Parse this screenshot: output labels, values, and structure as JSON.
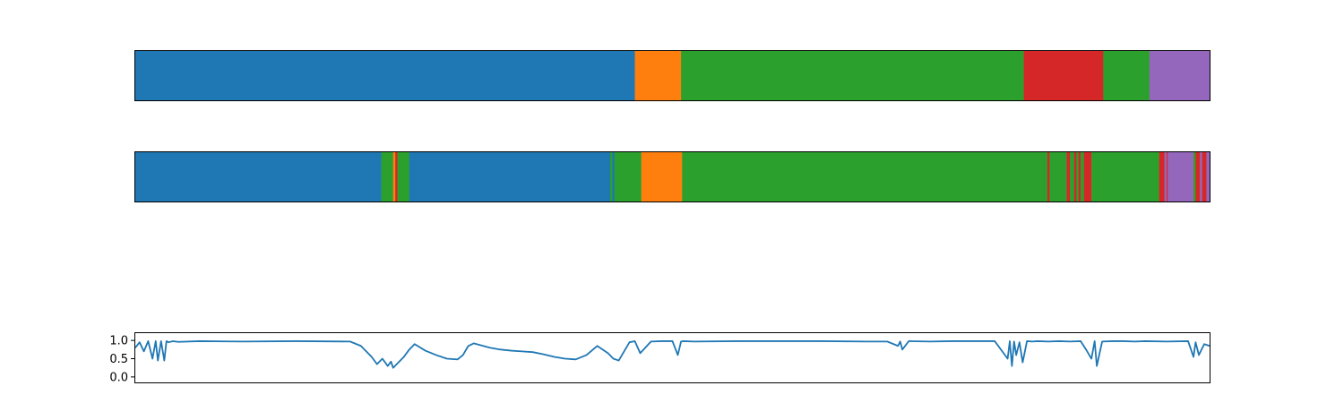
{
  "colors": {
    "blue": "#1f77b4",
    "orange": "#ff7f0e",
    "green": "#2ca02c",
    "red": "#d62728",
    "purple": "#9467bd",
    "line": "#1f77b4",
    "axes": "#000000",
    "background": "#ffffff"
  },
  "chart_data": [
    {
      "type": "heatmap",
      "x_range": [
        0,
        1000
      ],
      "axes_visible": false,
      "segments": [
        {
          "start": 0,
          "end": 465,
          "color": "blue"
        },
        {
          "start": 465,
          "end": 508,
          "color": "orange"
        },
        {
          "start": 508,
          "end": 827,
          "color": "green"
        },
        {
          "start": 827,
          "end": 901,
          "color": "red"
        },
        {
          "start": 901,
          "end": 944,
          "color": "green"
        },
        {
          "start": 944,
          "end": 1000,
          "color": "purple"
        }
      ]
    },
    {
      "type": "heatmap",
      "x_range": [
        0,
        1000
      ],
      "axes_visible": false,
      "segments": [
        {
          "start": 0,
          "end": 229,
          "color": "blue"
        },
        {
          "start": 229,
          "end": 240,
          "color": "green"
        },
        {
          "start": 240,
          "end": 242,
          "color": "orange"
        },
        {
          "start": 242,
          "end": 244,
          "color": "red"
        },
        {
          "start": 244,
          "end": 255,
          "color": "green"
        },
        {
          "start": 255,
          "end": 442,
          "color": "blue"
        },
        {
          "start": 442,
          "end": 444,
          "color": "green"
        },
        {
          "start": 444,
          "end": 446,
          "color": "blue"
        },
        {
          "start": 446,
          "end": 471,
          "color": "green"
        },
        {
          "start": 471,
          "end": 509,
          "color": "orange"
        },
        {
          "start": 509,
          "end": 849,
          "color": "green"
        },
        {
          "start": 849,
          "end": 851,
          "color": "red"
        },
        {
          "start": 851,
          "end": 867,
          "color": "green"
        },
        {
          "start": 867,
          "end": 870,
          "color": "red"
        },
        {
          "start": 870,
          "end": 874,
          "color": "green"
        },
        {
          "start": 874,
          "end": 876,
          "color": "red"
        },
        {
          "start": 876,
          "end": 878,
          "color": "green"
        },
        {
          "start": 878,
          "end": 880,
          "color": "red"
        },
        {
          "start": 880,
          "end": 883,
          "color": "green"
        },
        {
          "start": 883,
          "end": 890,
          "color": "red"
        },
        {
          "start": 890,
          "end": 953,
          "color": "green"
        },
        {
          "start": 953,
          "end": 958,
          "color": "red"
        },
        {
          "start": 958,
          "end": 960,
          "color": "purple"
        },
        {
          "start": 960,
          "end": 961,
          "color": "red"
        },
        {
          "start": 961,
          "end": 985,
          "color": "purple"
        },
        {
          "start": 985,
          "end": 987,
          "color": "green"
        },
        {
          "start": 987,
          "end": 991,
          "color": "red"
        },
        {
          "start": 991,
          "end": 993,
          "color": "purple"
        },
        {
          "start": 993,
          "end": 997,
          "color": "red"
        },
        {
          "start": 997,
          "end": 1000,
          "color": "purple"
        }
      ]
    },
    {
      "type": "line",
      "x_range": [
        0,
        1000
      ],
      "ylim": [
        -0.15,
        1.2
      ],
      "yticks": [
        0.0,
        0.5,
        1.0
      ],
      "ytick_labels": [
        "0.0",
        "0.5",
        "1.0"
      ],
      "xticks_visible": false,
      "series": [
        {
          "color": "line",
          "x": [
            0,
            4,
            8,
            12,
            16,
            19,
            21,
            24,
            27,
            29,
            31,
            35,
            40,
            60,
            100,
            150,
            200,
            210,
            220,
            225,
            230,
            235,
            238,
            240,
            245,
            250,
            255,
            260,
            270,
            280,
            290,
            300,
            305,
            310,
            315,
            320,
            330,
            340,
            350,
            360,
            370,
            380,
            390,
            400,
            410,
            420,
            430,
            440,
            445,
            450,
            460,
            465,
            470,
            480,
            490,
            500,
            505,
            508,
            510,
            520,
            560,
            600,
            640,
            680,
            700,
            710,
            712,
            714,
            720,
            740,
            760,
            780,
            800,
            812,
            814,
            816,
            818,
            820,
            823,
            826,
            830,
            835,
            840,
            850,
            860,
            870,
            880,
            885,
            890,
            893,
            895,
            900,
            910,
            920,
            930,
            940,
            960,
            980,
            985,
            987,
            990,
            995,
            1000
          ],
          "y": [
            0.8,
            0.95,
            0.7,
            0.98,
            0.5,
            0.98,
            0.45,
            0.98,
            0.45,
            0.98,
            0.95,
            0.98,
            0.96,
            0.98,
            0.97,
            0.98,
            0.97,
            0.85,
            0.55,
            0.35,
            0.5,
            0.3,
            0.42,
            0.25,
            0.4,
            0.55,
            0.75,
            0.9,
            0.72,
            0.6,
            0.5,
            0.48,
            0.6,
            0.85,
            0.92,
            0.88,
            0.8,
            0.75,
            0.72,
            0.7,
            0.68,
            0.62,
            0.55,
            0.5,
            0.48,
            0.6,
            0.85,
            0.65,
            0.5,
            0.45,
            0.95,
            0.98,
            0.65,
            0.97,
            0.98,
            0.98,
            0.6,
            0.97,
            0.98,
            0.97,
            0.98,
            0.98,
            0.98,
            0.97,
            0.97,
            0.85,
            0.97,
            0.75,
            0.98,
            0.97,
            0.98,
            0.98,
            0.98,
            0.5,
            0.98,
            0.3,
            0.97,
            0.6,
            0.95,
            0.4,
            0.98,
            0.97,
            0.98,
            0.97,
            0.98,
            0.97,
            0.98,
            0.75,
            0.5,
            0.98,
            0.3,
            0.97,
            0.98,
            0.98,
            0.97,
            0.98,
            0.97,
            0.98,
            0.55,
            0.95,
            0.6,
            0.9,
            0.85
          ]
        }
      ]
    }
  ]
}
